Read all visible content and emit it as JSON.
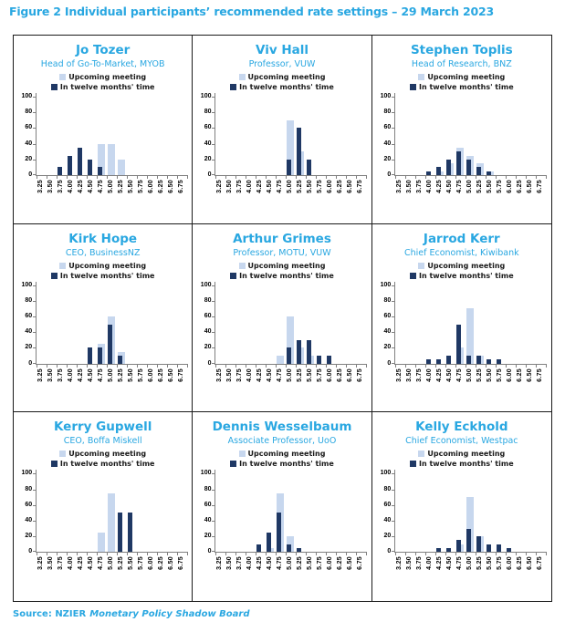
{
  "header": {
    "title": "Figure 2 Individual participants’ recommended rate settings – 29 March 2023"
  },
  "footer": {
    "source_label": "Source: NZIER",
    "source_title": "Monetary Policy Shadow Board"
  },
  "colors": {
    "heading_blue": "#29A7E1",
    "upcoming_bar": "#C7D7EE",
    "twelve_months_bar": "#1F3864",
    "axis_gray": "#808080"
  },
  "chart_data": [
    {
      "type": "bar",
      "title": "Jo Tozer",
      "subtitle": "Head of Go-To-Market, MYOB",
      "categories": [
        "3.25",
        "3.50",
        "3.75",
        "4.00",
        "4.25",
        "4.50",
        "4.75",
        "5.00",
        "5.25",
        "5.50",
        "5.75",
        "6.00",
        "6.25",
        "6.50",
        "6.75"
      ],
      "series": [
        {
          "name": "Upcoming meeting",
          "values": [
            0,
            0,
            0,
            0,
            0,
            0,
            40,
            40,
            20,
            0,
            0,
            0,
            0,
            0,
            0
          ]
        },
        {
          "name": "In twelve months' time",
          "values": [
            0,
            0,
            10,
            25,
            35,
            20,
            10,
            0,
            0,
            0,
            0,
            0,
            0,
            0,
            0
          ]
        }
      ],
      "ylim": [
        0,
        100
      ],
      "y_ticks": [
        0,
        20,
        40,
        60,
        80,
        100
      ],
      "legend_position": "top",
      "grid": false
    },
    {
      "type": "bar",
      "title": "Viv Hall",
      "subtitle": "Professor, VUW",
      "categories": [
        "3.25",
        "3.50",
        "3.75",
        "4.00",
        "4.25",
        "4.50",
        "4.75",
        "5.00",
        "5.25",
        "5.50",
        "5.75",
        "6.00",
        "6.25",
        "6.50",
        "6.75"
      ],
      "series": [
        {
          "name": "Upcoming meeting",
          "values": [
            0,
            0,
            0,
            0,
            0,
            0,
            0,
            70,
            30,
            0,
            0,
            0,
            0,
            0,
            0
          ]
        },
        {
          "name": "In twelve months' time",
          "values": [
            0,
            0,
            0,
            0,
            0,
            0,
            0,
            20,
            60,
            20,
            0,
            0,
            0,
            0,
            0
          ]
        }
      ],
      "ylim": [
        0,
        100
      ],
      "y_ticks": [
        0,
        20,
        40,
        60,
        80,
        100
      ],
      "legend_position": "top",
      "grid": false
    },
    {
      "type": "bar",
      "title": "Stephen Toplis",
      "subtitle": "Head of Research, BNZ",
      "categories": [
        "3.25",
        "3.50",
        "3.75",
        "4.00",
        "4.25",
        "4.50",
        "4.75",
        "5.00",
        "5.25",
        "5.50",
        "5.75",
        "6.00",
        "6.25",
        "6.50",
        "6.75"
      ],
      "series": [
        {
          "name": "Upcoming meeting",
          "values": [
            0,
            0,
            0,
            0,
            5,
            15,
            35,
            25,
            15,
            5,
            0,
            0,
            0,
            0,
            0
          ]
        },
        {
          "name": "In twelve months' time",
          "values": [
            0,
            0,
            0,
            5,
            10,
            20,
            30,
            20,
            10,
            5,
            0,
            0,
            0,
            0,
            0
          ]
        }
      ],
      "ylim": [
        0,
        100
      ],
      "y_ticks": [
        0,
        20,
        40,
        60,
        80,
        100
      ],
      "legend_position": "top",
      "grid": false
    },
    {
      "type": "bar",
      "title": "Kirk Hope",
      "subtitle": "CEO, BusinessNZ",
      "categories": [
        "3.25",
        "3.50",
        "3.75",
        "4.00",
        "4.25",
        "4.50",
        "4.75",
        "5.00",
        "5.25",
        "5.50",
        "5.75",
        "6.00",
        "6.25",
        "6.50",
        "6.75"
      ],
      "series": [
        {
          "name": "Upcoming meeting",
          "values": [
            0,
            0,
            0,
            0,
            0,
            0,
            25,
            60,
            15,
            0,
            0,
            0,
            0,
            0,
            0
          ]
        },
        {
          "name": "In twelve months' time",
          "values": [
            0,
            0,
            0,
            0,
            0,
            20,
            20,
            50,
            10,
            0,
            0,
            0,
            0,
            0,
            0
          ]
        }
      ],
      "ylim": [
        0,
        100
      ],
      "y_ticks": [
        0,
        20,
        40,
        60,
        80,
        100
      ],
      "legend_position": "top",
      "grid": false
    },
    {
      "type": "bar",
      "title": "Arthur Grimes",
      "subtitle": "Professor, MOTU, VUW",
      "categories": [
        "3.25",
        "3.50",
        "3.75",
        "4.00",
        "4.25",
        "4.50",
        "4.75",
        "5.00",
        "5.25",
        "5.50",
        "5.75",
        "6.00",
        "6.25",
        "6.50",
        "6.75"
      ],
      "series": [
        {
          "name": "Upcoming meeting",
          "values": [
            0,
            0,
            0,
            0,
            0,
            0,
            10,
            60,
            20,
            10,
            0,
            0,
            0,
            0,
            0
          ]
        },
        {
          "name": "In twelve months' time",
          "values": [
            0,
            0,
            0,
            0,
            0,
            0,
            0,
            20,
            30,
            30,
            10,
            10,
            0,
            0,
            0
          ]
        }
      ],
      "ylim": [
        0,
        100
      ],
      "y_ticks": [
        0,
        20,
        40,
        60,
        80,
        100
      ],
      "legend_position": "top",
      "grid": false
    },
    {
      "type": "bar",
      "title": "Jarrod Kerr",
      "subtitle": "Chief Economist, Kiwibank",
      "categories": [
        "3.25",
        "3.50",
        "3.75",
        "4.00",
        "4.25",
        "4.50",
        "4.75",
        "5.00",
        "5.25",
        "5.50",
        "5.75",
        "6.00",
        "6.25",
        "6.50",
        "6.75"
      ],
      "series": [
        {
          "name": "Upcoming meeting",
          "values": [
            0,
            0,
            0,
            0,
            0,
            0,
            20,
            70,
            10,
            0,
            0,
            0,
            0,
            0,
            0
          ]
        },
        {
          "name": "In twelve months' time",
          "values": [
            0,
            0,
            0,
            5,
            5,
            10,
            50,
            10,
            10,
            5,
            5,
            0,
            0,
            0,
            0
          ]
        }
      ],
      "ylim": [
        0,
        100
      ],
      "y_ticks": [
        0,
        20,
        40,
        60,
        80,
        100
      ],
      "legend_position": "top",
      "grid": false
    },
    {
      "type": "bar",
      "title": "Kerry Gupwell",
      "subtitle": "CEO, Boffa Miskell",
      "categories": [
        "3.25",
        "3.50",
        "3.75",
        "4.00",
        "4.25",
        "4.50",
        "4.75",
        "5.00",
        "5.25",
        "5.50",
        "5.75",
        "6.00",
        "6.25",
        "6.50",
        "6.75"
      ],
      "series": [
        {
          "name": "Upcoming meeting",
          "values": [
            0,
            0,
            0,
            0,
            0,
            0,
            25,
            75,
            0,
            0,
            0,
            0,
            0,
            0,
            0
          ]
        },
        {
          "name": "In twelve months' time",
          "values": [
            0,
            0,
            0,
            0,
            0,
            0,
            0,
            0,
            50,
            50,
            0,
            0,
            0,
            0,
            0
          ]
        }
      ],
      "ylim": [
        0,
        100
      ],
      "y_ticks": [
        0,
        20,
        40,
        60,
        80,
        100
      ],
      "legend_position": "top",
      "grid": false
    },
    {
      "type": "bar",
      "title": "Dennis Wesselbaum",
      "subtitle": "Associate Professor, UoO",
      "categories": [
        "3.25",
        "3.50",
        "3.75",
        "4.00",
        "4.25",
        "4.50",
        "4.75",
        "5.00",
        "5.25",
        "5.50",
        "5.75",
        "6.00",
        "6.25",
        "6.50",
        "6.75"
      ],
      "series": [
        {
          "name": "Upcoming meeting",
          "values": [
            0,
            0,
            0,
            0,
            0,
            5,
            75,
            20,
            0,
            0,
            0,
            0,
            0,
            0,
            0
          ]
        },
        {
          "name": "In twelve months' time",
          "values": [
            0,
            0,
            0,
            0,
            10,
            25,
            50,
            10,
            5,
            0,
            0,
            0,
            0,
            0,
            0
          ]
        }
      ],
      "ylim": [
        0,
        100
      ],
      "y_ticks": [
        0,
        20,
        40,
        60,
        80,
        100
      ],
      "legend_position": "top",
      "grid": false
    },
    {
      "type": "bar",
      "title": "Kelly Eckhold",
      "subtitle": "Chief Economist, Westpac",
      "categories": [
        "3.25",
        "3.50",
        "3.75",
        "4.00",
        "4.25",
        "4.50",
        "4.75",
        "5.00",
        "5.25",
        "5.50",
        "5.75",
        "6.00",
        "6.25",
        "6.50",
        "6.75"
      ],
      "series": [
        {
          "name": "Upcoming meeting",
          "values": [
            0,
            0,
            0,
            0,
            0,
            0,
            10,
            70,
            20,
            0,
            0,
            0,
            0,
            0,
            0
          ]
        },
        {
          "name": "In twelve months' time",
          "values": [
            0,
            0,
            0,
            0,
            5,
            5,
            15,
            30,
            20,
            10,
            10,
            5,
            0,
            0,
            0
          ]
        }
      ],
      "ylim": [
        0,
        100
      ],
      "y_ticks": [
        0,
        20,
        40,
        60,
        80,
        100
      ],
      "legend_position": "top",
      "grid": false
    }
  ]
}
